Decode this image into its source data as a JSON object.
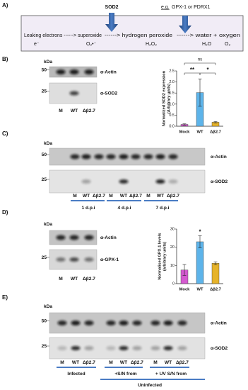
{
  "panel_a": {
    "label": "A)",
    "steps": [
      "Leaking electrons ------> superoxide",
      "------> hydrogen peroxide",
      "------> water + oxygen"
    ],
    "species": [
      "e⁻",
      "O₂•⁻",
      "H₂O₂",
      "H₂O",
      "O₂"
    ],
    "enzyme_1": "SOD2",
    "eg": "e.g.",
    "enzyme_2": "GPX-1 or PDRX1"
  },
  "panel_b": {
    "label": "B)",
    "kda": "kDa",
    "markers": [
      50,
      25
    ],
    "antibodies": [
      "α-Actin",
      "α-SOD2"
    ],
    "lanes": [
      "M",
      "WT",
      "Δβ2.7"
    ]
  },
  "panel_c": {
    "label": "C)",
    "kda": "kDa",
    "markers": [
      50,
      25
    ],
    "antibodies": [
      "α-Actin",
      "α-SOD2"
    ],
    "lanes": [
      "M",
      "WT",
      "Δβ2.7",
      "M",
      "WT",
      "Δβ2.7",
      "M",
      "WT",
      "Δβ2.7"
    ],
    "timepoints": [
      "1 d.p.i",
      "4 d.p.i",
      "7 d.p.i"
    ]
  },
  "panel_d": {
    "label": "D)",
    "kda": "kDa",
    "markers": [
      25
    ],
    "antibodies": [
      "α-Actin",
      "α-GPX-1"
    ],
    "lanes": [
      "M",
      "WT",
      "Δβ2.7"
    ]
  },
  "panel_e": {
    "label": "E)",
    "kda": "kDa",
    "markers": [
      50,
      25
    ],
    "antibodies": [
      "α-Actin",
      "α-SOD2"
    ],
    "lanes": [
      "M",
      "WT",
      "Δβ2.7",
      "M",
      "WT",
      "Δβ2.7",
      "M",
      "WT",
      "Δβ2.7"
    ],
    "groups": [
      "Infected",
      "+S/N from",
      "+ UV S/N from"
    ],
    "supergroup": "Uninfected"
  },
  "chart_data": [
    {
      "type": "bar",
      "ylabel": [
        "Normalized SOD2 expression",
        "(Arbitrary units)"
      ],
      "categories": [
        "Mock",
        "WT",
        "Δβ2.7"
      ],
      "values": [
        0.08,
        1.52,
        0.18
      ],
      "errors": [
        0.03,
        0.62,
        0.03
      ],
      "colors": [
        "#d45ad0",
        "#5db4ea",
        "#e6b32a"
      ],
      "ylim": [
        0,
        2.5
      ],
      "yticks": [
        {
          "value": 0,
          "label": "0.0"
        },
        {
          "value": 0.5,
          "label": "0.5"
        },
        {
          "value": 1,
          "label": "1.0"
        },
        {
          "value": 1.5,
          "label": "1.5"
        },
        {
          "value": 2,
          "label": "2.0"
        },
        {
          "value": 2.5,
          "label": "2.5"
        }
      ],
      "annotations": [
        "ns",
        "**",
        "*"
      ]
    },
    {
      "type": "bar",
      "ylabel": [
        "Normalised GPX-1 levels",
        "(arbitrary units)"
      ],
      "categories": [
        "Mock",
        "WT",
        "Δβ2.7"
      ],
      "values": [
        7.5,
        23,
        11.2
      ],
      "errors": [
        3,
        3.3,
        0.8
      ],
      "colors": [
        "#d45ad0",
        "#5db4ea",
        "#e6b32a"
      ],
      "ylim": [
        0,
        30
      ],
      "yticks": [
        0,
        10,
        20,
        30
      ],
      "annotations": [
        "*"
      ]
    }
  ]
}
